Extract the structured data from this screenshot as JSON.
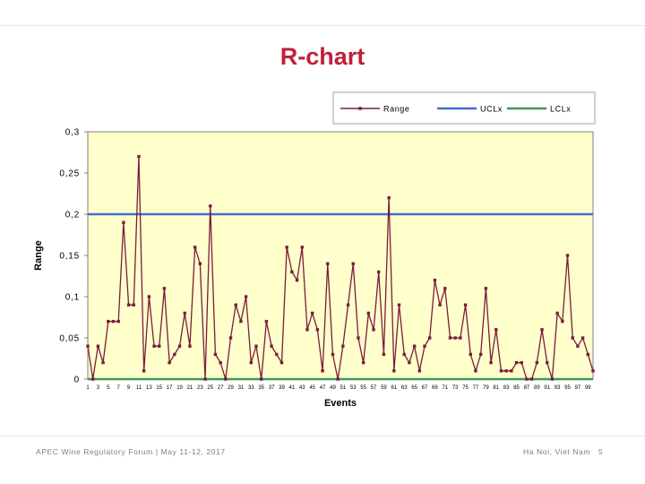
{
  "slide": {
    "title": "R-chart",
    "footer_left": "APEC Wine Regulatory Forum | May 11-12, 2017",
    "footer_right": "Ha Noi, Viet Nam",
    "page_number": "5"
  },
  "chart_data": {
    "type": "line",
    "title": "",
    "xlabel": "Events",
    "ylabel": "Range",
    "ylim": [
      0,
      0.3
    ],
    "yticks": [
      "0,3",
      "0,25",
      "0,2",
      "0,15",
      "0,1",
      "0,05",
      "0"
    ],
    "xtick_labels": [
      "1",
      "3",
      "5",
      "7",
      "9",
      "11",
      "13",
      "15",
      "17",
      "19",
      "21",
      "23",
      "25",
      "27",
      "29",
      "31",
      "33",
      "35",
      "37",
      "39",
      "41",
      "43",
      "45",
      "47",
      "49",
      "51",
      "53",
      "55",
      "57",
      "59",
      "61",
      "63",
      "65",
      "67",
      "69",
      "71",
      "73",
      "75",
      "77",
      "79",
      "81",
      "83",
      "85",
      "87",
      "89",
      "91",
      "93",
      "95",
      "97",
      "99"
    ],
    "x_count": 100,
    "grid": false,
    "legend_position": "top-right",
    "background_color": "#ffffcc",
    "series": [
      {
        "name": "Range",
        "color": "#7b1c3c",
        "values": [
          0.04,
          0,
          0.04,
          0.02,
          0.07,
          0.07,
          0.07,
          0.19,
          0.09,
          0.09,
          0.27,
          0.01,
          0.1,
          0.04,
          0.04,
          0.11,
          0.02,
          0.03,
          0.04,
          0.08,
          0.04,
          0.16,
          0.14,
          0,
          0.21,
          0.03,
          0.02,
          0,
          0.05,
          0.09,
          0.07,
          0.1,
          0.02,
          0.04,
          0,
          0.07,
          0.04,
          0.03,
          0.02,
          0.16,
          0.13,
          0.12,
          0.16,
          0.06,
          0.08,
          0.06,
          0.01,
          0.14,
          0.03,
          0,
          0.04,
          0.09,
          0.14,
          0.05,
          0.02,
          0.08,
          0.06,
          0.13,
          0.03,
          0.22,
          0.01,
          0.09,
          0.03,
          0.02,
          0.04,
          0.01,
          0.04,
          0.05,
          0.12,
          0.09,
          0.11,
          0.05,
          0.05,
          0.05,
          0.09,
          0.03,
          0.01,
          0.03,
          0.11,
          0.02,
          0.06,
          0.01,
          0.01,
          0.01,
          0.02,
          0.02,
          0,
          0,
          0.02,
          0.06,
          0.02,
          0,
          0.08,
          0.07,
          0.15,
          0.05,
          0.04,
          0.05,
          0.03,
          0.01
        ]
      },
      {
        "name": "UCLx",
        "color": "#3e6fd6",
        "values": [
          0.2
        ]
      },
      {
        "name": "LCLx",
        "color": "#3a9b55",
        "values": [
          0
        ]
      }
    ]
  }
}
